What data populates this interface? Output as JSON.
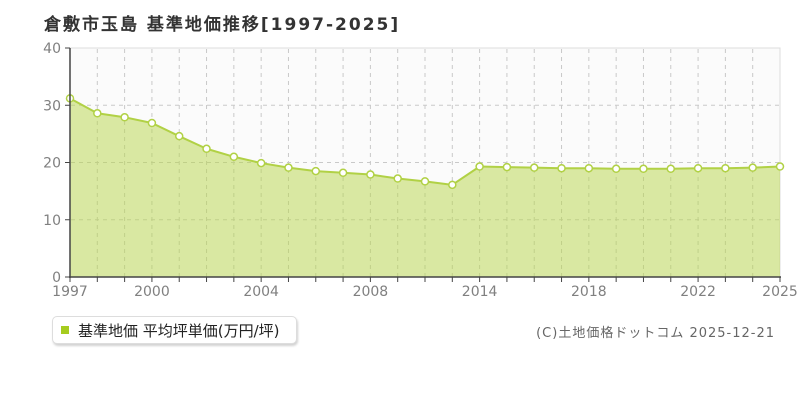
{
  "title": "倉敷市玉島 基準地価推移[1997-2025]",
  "legend": {
    "label": "基準地価 平均坪単価(万円/坪)",
    "marker_color": "#a6cc1f"
  },
  "footer": {
    "copyright": "(C)土地価格ドットコム 2025-12-21"
  },
  "chart_data": {
    "type": "area",
    "title": "倉敷市玉島 基準地価推移[1997-2025]",
    "xlabel": "",
    "ylabel": "平均坪単価(万円/坪)",
    "ylim": [
      0,
      40
    ],
    "y_ticks": [
      0,
      10,
      20,
      30,
      40
    ],
    "grid": true,
    "legend_position": "bottom-left",
    "x_tick_labels": [
      "1997",
      "",
      "",
      "2000",
      "",
      "",
      "",
      "2004",
      "",
      "",
      "",
      "2008",
      "",
      "",
      "",
      "2014",
      "",
      "",
      "",
      "2018",
      "",
      "",
      "",
      "2022",
      "",
      "",
      "2025"
    ],
    "values": [
      31.2,
      28.6,
      27.9,
      26.9,
      24.6,
      22.4,
      21.0,
      19.9,
      19.1,
      18.5,
      18.2,
      17.9,
      17.2,
      16.7,
      16.1,
      19.3,
      19.2,
      19.1,
      19.0,
      19.0,
      18.9,
      18.9,
      18.9,
      19.0,
      19.0,
      19.1,
      19.3
    ],
    "series_name": "基準地価 平均坪単価(万円/坪)",
    "colors": {
      "area_fill": "rgba(184,213,74,0.5)",
      "line": "#b1d145",
      "marker_fill": "#ffffff",
      "grid": "#c9c9c9",
      "axis": "#444444",
      "tick_label": "#808080",
      "plot_bg": "#fbfbfb",
      "plot_border": "#dddddd",
      "title_color": "#333333"
    }
  }
}
